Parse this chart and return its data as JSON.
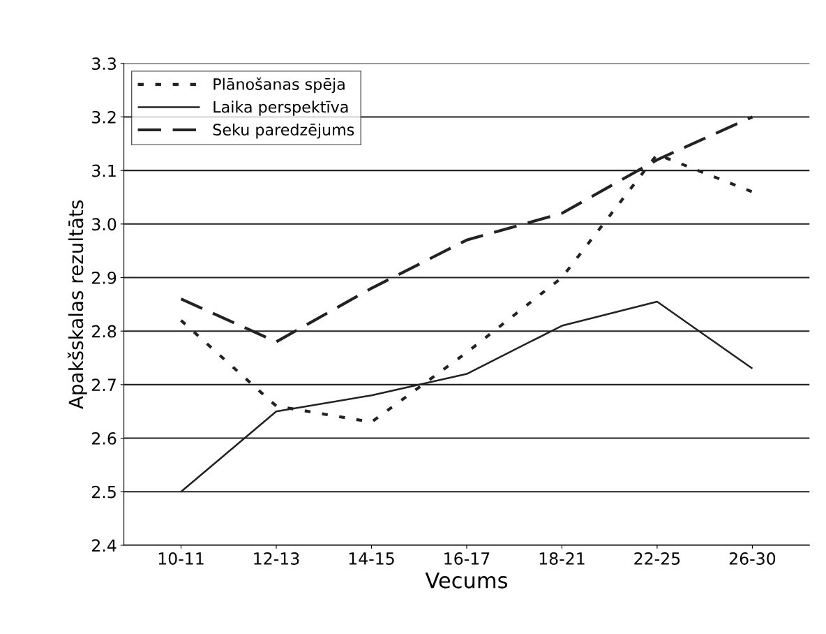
{
  "chart_data": {
    "type": "line",
    "xlabel": "Vecums",
    "ylabel": "Apakšskalas rezultāts",
    "categories": [
      "10-11",
      "12-13",
      "14-15",
      "16-17",
      "18-21",
      "22-25",
      "26-30"
    ],
    "series": [
      {
        "name": "Plānošanas spēja",
        "color": "#222222",
        "line_style": "dotted",
        "values": [
          2.82,
          2.66,
          2.63,
          2.76,
          2.9,
          3.13,
          3.06
        ]
      },
      {
        "name": "Laika perspektīva",
        "color": "#222222",
        "line_style": "solid",
        "values": [
          2.5,
          2.65,
          2.68,
          2.72,
          2.81,
          2.855,
          2.73
        ]
      },
      {
        "name": "Seku paredzējums",
        "color": "#222222",
        "line_style": "dashed",
        "values": [
          2.86,
          2.78,
          2.88,
          2.97,
          3.02,
          3.12,
          3.2
        ]
      }
    ],
    "ylim": [
      2.4,
      3.3
    ],
    "yticks": [
      {
        "value": 2.4,
        "label": "2.4"
      },
      {
        "value": 2.5,
        "label": "2.5"
      },
      {
        "value": 2.6,
        "label": "2.6"
      },
      {
        "value": 2.7,
        "label": "2.7"
      },
      {
        "value": 2.8,
        "label": "2.8"
      },
      {
        "value": 2.9,
        "label": "2.9"
      },
      {
        "value": 3.0,
        "label": "3.0"
      },
      {
        "value": 3.1,
        "label": "3.1"
      },
      {
        "value": 3.2,
        "label": "3.2"
      },
      {
        "value": 3.3,
        "label": "3.3"
      }
    ],
    "grid": "y",
    "legend": "top left",
    "marker": "none"
  }
}
